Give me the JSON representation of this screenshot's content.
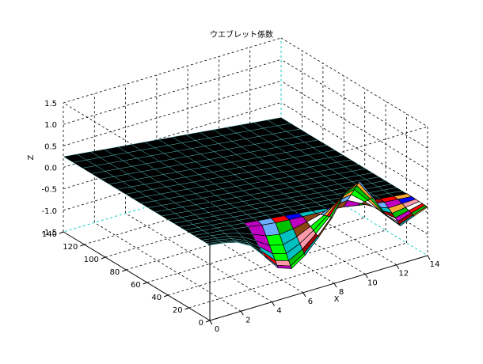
{
  "figure": {
    "title": "ウエブレット係数"
  },
  "chart_data": {
    "type": "surface3d",
    "title": "ウエブレット係数",
    "xlabel": "X",
    "ylabel": "",
    "zlabel": "Z",
    "xlim": [
      0,
      14
    ],
    "ylim": [
      0,
      140
    ],
    "zlim": [
      -1.5,
      1.5
    ],
    "xticks": [
      "0",
      "2",
      "4",
      "6",
      "8",
      "10",
      "12",
      "14"
    ],
    "yticks": [
      "0",
      "20",
      "40",
      "60",
      "80",
      "100",
      "120",
      "140"
    ],
    "zticks": [
      "-1.5",
      "-1.0",
      "-0.5",
      "0.0",
      "0.5",
      "1.0",
      "1.5"
    ],
    "grid": true,
    "colors": {
      "dense_region_fill": "#000000",
      "dense_region_mesh": "#5ad4d4",
      "patch_palette": [
        "#ff0000",
        "#00c000",
        "#0000ff",
        "#00c0c0",
        "#c000c0",
        "#a00000",
        "#8b4513",
        "#ff99aa",
        "#ffffff",
        "#6ab0ff",
        "#00ff00",
        "#ffaa33"
      ]
    }
  }
}
